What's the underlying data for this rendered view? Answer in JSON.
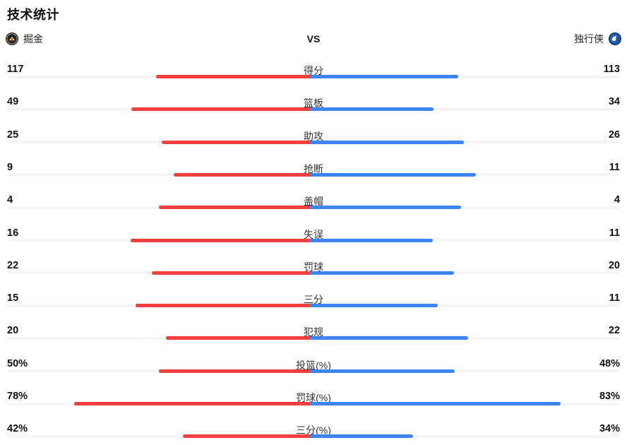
{
  "page": {
    "title": "技术统计",
    "vs_label": "VS"
  },
  "header": {
    "home_team": "掘金",
    "away_team": "独行侠",
    "home_logo": "nuggets-logo-icon",
    "away_logo": "mavericks-logo-icon"
  },
  "colors": {
    "home_bar": "#f4403c",
    "away_bar": "#3d85f5",
    "track": "#f5f5f5",
    "value_text": "#111111",
    "label_text": "#333333",
    "nuggets_navy": "#0e2240",
    "nuggets_gold": "#fdb927",
    "mavericks_blue": "#1d62b0",
    "mavericks_navy": "#0a2a55"
  },
  "chart_data": {
    "type": "bar",
    "subtype": "head-to-head horizontal comparison",
    "title": "技术统计",
    "legend": {
      "home": "掘金",
      "away": "独行侠"
    },
    "layout_hints": {
      "junction": "bars meet at fixed center line, home bar grows leftward, away bar grows rightward",
      "count_rows": "home/away widths split a constant total proportionally to values",
      "percent_rows": "each side width = value/100 of half track"
    },
    "categories": [
      "得分",
      "篮板",
      "助攻",
      "抢断",
      "盖帽",
      "失误",
      "罚球",
      "三分",
      "犯规",
      "投篮(%)",
      "罚球(%)",
      "三分(%)"
    ],
    "series": [
      {
        "name": "掘金",
        "values": [
          117,
          49,
          25,
          9,
          4,
          16,
          22,
          15,
          20,
          50,
          78,
          42
        ]
      },
      {
        "name": "独行侠",
        "values": [
          113,
          34,
          26,
          11,
          4,
          11,
          20,
          11,
          22,
          48,
          83,
          34
        ]
      }
    ],
    "rows": [
      {
        "label": "得分",
        "home": "117",
        "away": "113",
        "home_value": 117,
        "away_value": 113,
        "percent": false
      },
      {
        "label": "篮板",
        "home": "49",
        "away": "34",
        "home_value": 49,
        "away_value": 34,
        "percent": false
      },
      {
        "label": "助攻",
        "home": "25",
        "away": "26",
        "home_value": 25,
        "away_value": 26,
        "percent": false
      },
      {
        "label": "抢断",
        "home": "9",
        "away": "11",
        "home_value": 9,
        "away_value": 11,
        "percent": false
      },
      {
        "label": "盖帽",
        "home": "4",
        "away": "4",
        "home_value": 4,
        "away_value": 4,
        "percent": false
      },
      {
        "label": "失误",
        "home": "16",
        "away": "11",
        "home_value": 16,
        "away_value": 11,
        "percent": false
      },
      {
        "label": "罚球",
        "home": "22",
        "away": "20",
        "home_value": 22,
        "away_value": 20,
        "percent": false
      },
      {
        "label": "三分",
        "home": "15",
        "away": "11",
        "home_value": 15,
        "away_value": 11,
        "percent": false
      },
      {
        "label": "犯规",
        "home": "20",
        "away": "22",
        "home_value": 20,
        "away_value": 22,
        "percent": false
      },
      {
        "label": "投篮(%)",
        "home": "50%",
        "away": "48%",
        "home_value": 50,
        "away_value": 48,
        "percent": true
      },
      {
        "label": "罚球(%)",
        "home": "78%",
        "away": "83%",
        "home_value": 78,
        "away_value": 83,
        "percent": true
      },
      {
        "label": "三分(%)",
        "home": "42%",
        "away": "34%",
        "home_value": 42,
        "away_value": 34,
        "percent": true
      }
    ]
  }
}
